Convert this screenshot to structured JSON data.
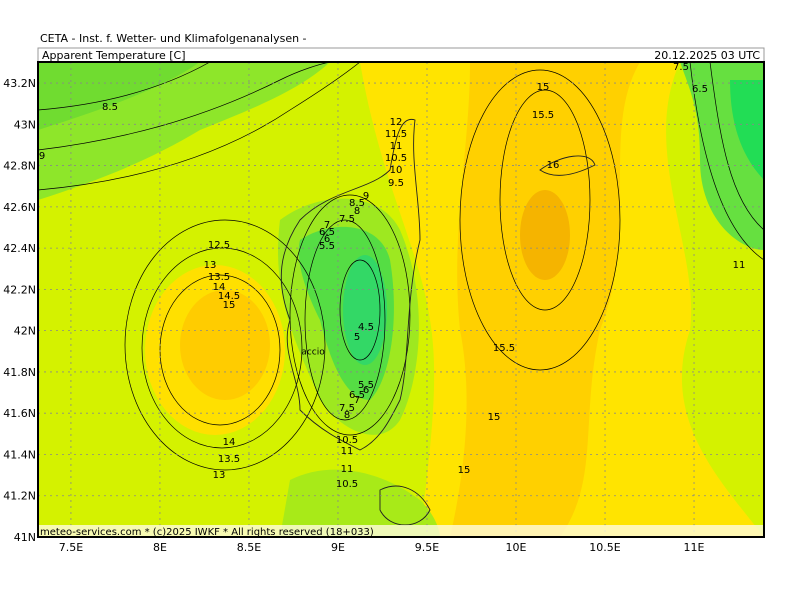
{
  "header": {
    "source": "CETA - Inst. f. Wetter- und Klimafolgenanalysen -",
    "title": "Apparent Temperature [C]",
    "time": "20.12.2025 03 UTC"
  },
  "map": {
    "xlim": [
      7.315,
      11.393
    ],
    "ylim": [
      41,
      43.302
    ],
    "lat_ticks": [
      {
        "value": 43.2,
        "label": "43.2N"
      },
      {
        "value": 43,
        "label": "43N"
      },
      {
        "value": 42.8,
        "label": "42.8N"
      },
      {
        "value": 42.6,
        "label": "42.6N"
      },
      {
        "value": 42.4,
        "label": "42.4N"
      },
      {
        "value": 42.2,
        "label": "42.2N"
      },
      {
        "value": 42,
        "label": "42N"
      },
      {
        "value": 41.8,
        "label": "41.8N"
      },
      {
        "value": 41.6,
        "label": "41.6N"
      },
      {
        "value": 41.4,
        "label": "41.4N"
      },
      {
        "value": 41.2,
        "label": "41.2N"
      },
      {
        "value": 41,
        "label": "41N"
      }
    ],
    "lon_ticks": [
      {
        "value": 7.5,
        "label": "7.5E"
      },
      {
        "value": 8,
        "label": "8E"
      },
      {
        "value": 8.5,
        "label": "8.5E"
      },
      {
        "value": 9,
        "label": "9E"
      },
      {
        "value": 9.5,
        "label": "9.5E"
      },
      {
        "value": 10,
        "label": "10E"
      },
      {
        "value": 10.5,
        "label": "10.5E"
      },
      {
        "value": 11,
        "label": "11E"
      }
    ],
    "contour_labels": [
      "8.5",
      "9",
      "12.5",
      "13",
      "13.5",
      "14",
      "14.5",
      "15",
      "14",
      "13.5",
      "13",
      "12",
      "11.5",
      "11",
      "10.5",
      "10",
      "9.5",
      "9",
      "8.5",
      "8",
      "7.5",
      "7",
      "6.5",
      "6",
      "5.5",
      "4.5",
      "5",
      "5.5",
      "6",
      "6.5",
      "7",
      "7.5",
      "8",
      "10.5",
      "11",
      "11",
      "10.5",
      "15",
      "15.5",
      "16",
      "15.5",
      "15",
      "15",
      "7.5",
      "6.5",
      "11"
    ],
    "place_label": "accio"
  },
  "footer": "meteo-services.com * (c)2025 IWKF * All rights reserved (18+033)"
}
